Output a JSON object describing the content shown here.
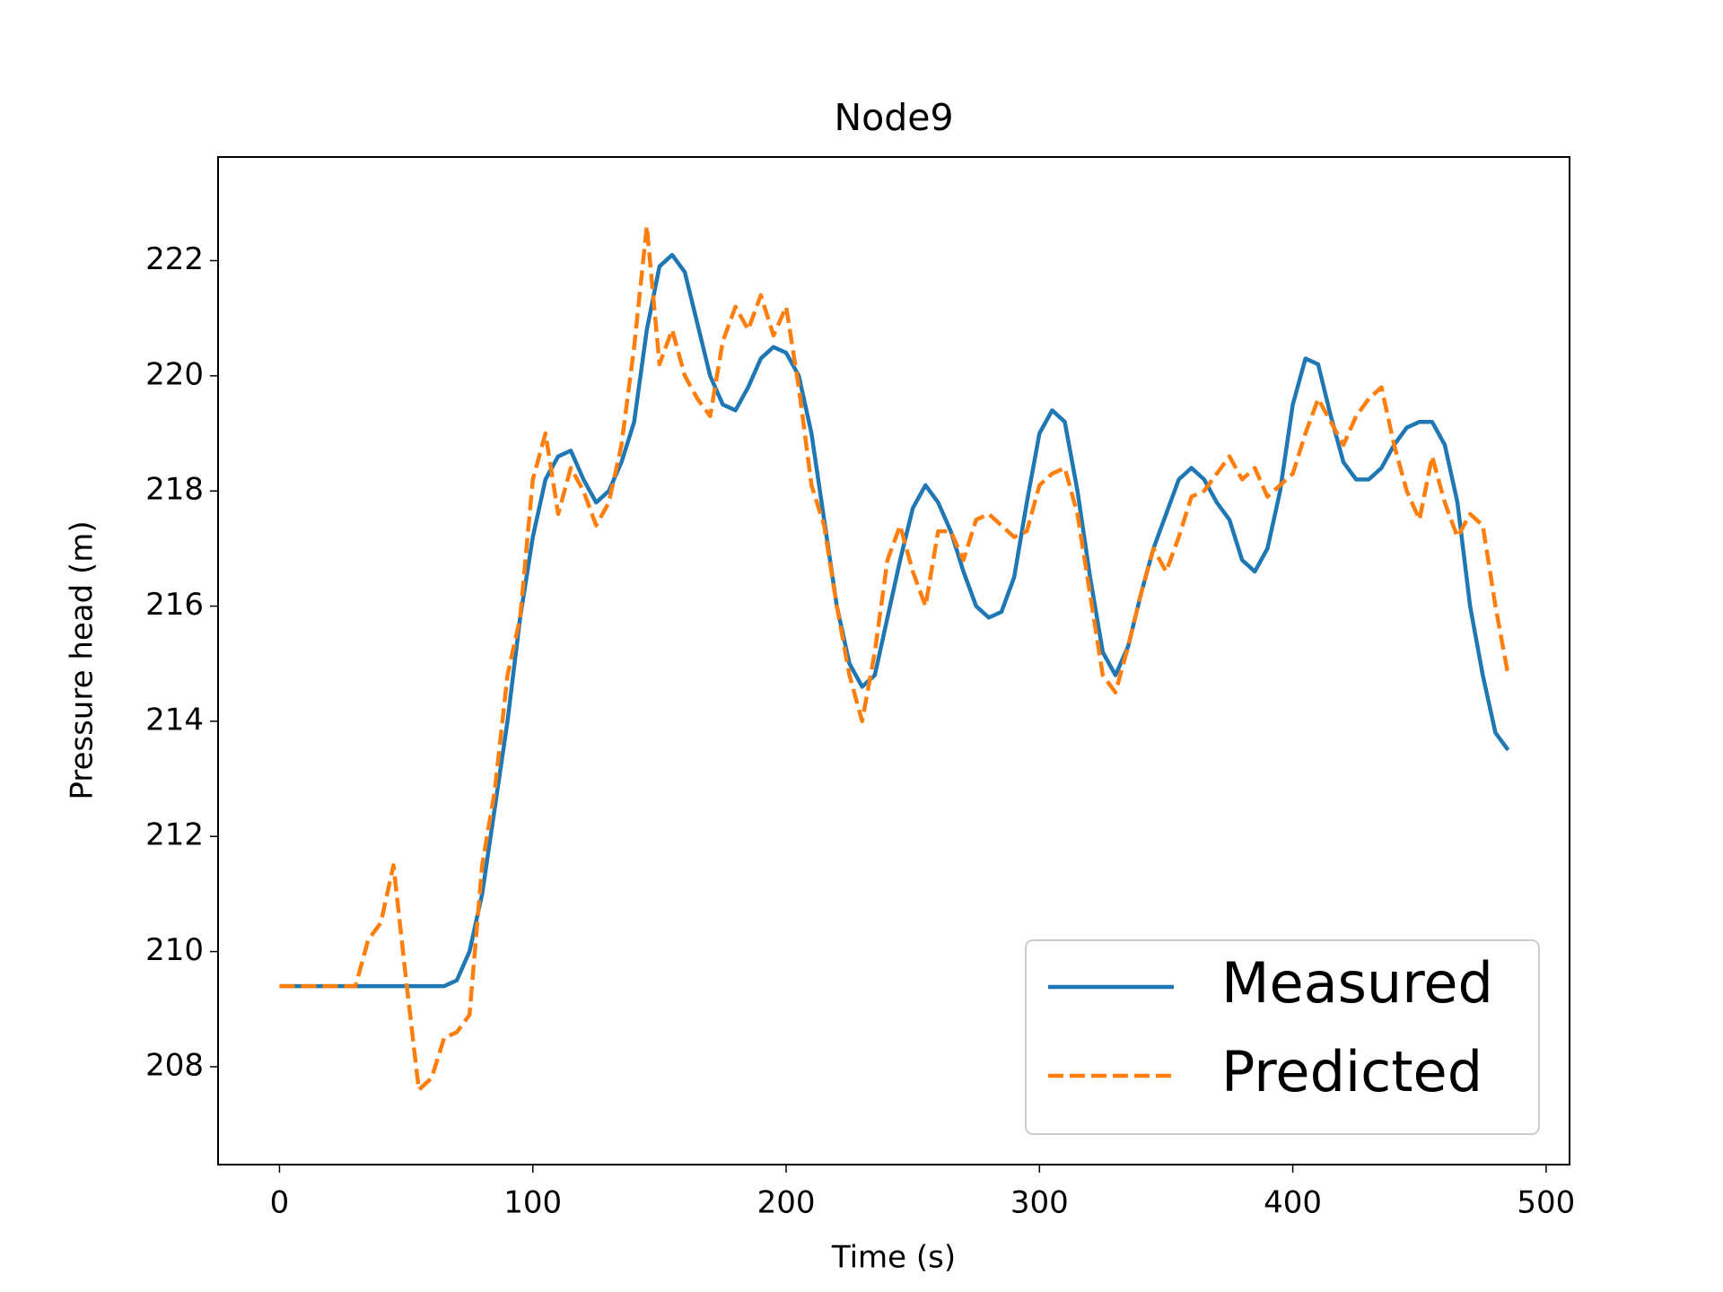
{
  "chart_data": {
    "type": "line",
    "title": "Node9",
    "x_label": "Time (s)",
    "y_label": "Pressure head (m)",
    "x": [
      0,
      5,
      10,
      15,
      20,
      25,
      30,
      35,
      40,
      45,
      50,
      55,
      60,
      65,
      70,
      75,
      80,
      85,
      90,
      95,
      100,
      105,
      110,
      115,
      120,
      125,
      130,
      135,
      140,
      145,
      150,
      155,
      160,
      165,
      170,
      175,
      180,
      185,
      190,
      195,
      200,
      205,
      210,
      215,
      220,
      225,
      230,
      235,
      240,
      245,
      250,
      255,
      260,
      265,
      270,
      275,
      280,
      285,
      290,
      295,
      300,
      305,
      310,
      315,
      320,
      325,
      330,
      335,
      340,
      345,
      350,
      355,
      360,
      365,
      370,
      375,
      380,
      385,
      390,
      395,
      400,
      405,
      410,
      415,
      420,
      425,
      430,
      435,
      440,
      445,
      450,
      455,
      460,
      465,
      470,
      475,
      480,
      485
    ],
    "series": [
      {
        "name": "Measured",
        "color": "#1f77b4",
        "dashed": false,
        "values": [
          209.4,
          209.4,
          209.4,
          209.4,
          209.4,
          209.4,
          209.4,
          209.4,
          209.4,
          209.4,
          209.4,
          209.4,
          209.4,
          209.4,
          209.5,
          210.0,
          211.0,
          212.5,
          214.0,
          215.8,
          217.2,
          218.2,
          218.6,
          218.7,
          218.2,
          217.8,
          218.0,
          218.5,
          219.2,
          220.8,
          221.9,
          222.1,
          221.8,
          220.9,
          220.0,
          219.5,
          219.4,
          219.8,
          220.3,
          220.5,
          220.4,
          220.0,
          219.0,
          217.5,
          216.0,
          215.0,
          214.6,
          214.8,
          215.8,
          216.8,
          217.7,
          218.1,
          217.8,
          217.3,
          216.6,
          216.0,
          215.8,
          215.9,
          216.5,
          217.8,
          219.0,
          219.4,
          219.2,
          218.0,
          216.5,
          215.2,
          214.8,
          215.3,
          216.2,
          217.0,
          217.6,
          218.2,
          218.4,
          218.2,
          217.8,
          217.5,
          216.8,
          216.6,
          217.0,
          218.0,
          219.5,
          220.3,
          220.2,
          219.3,
          218.5,
          218.2,
          218.2,
          218.4,
          218.8,
          219.1,
          219.2,
          219.2,
          218.8,
          217.8,
          216.0,
          214.8,
          213.8,
          213.5
        ]
      },
      {
        "name": "Predicted",
        "color": "#ff7f0e",
        "dashed": true,
        "values": [
          209.4,
          209.4,
          209.4,
          209.4,
          209.4,
          209.4,
          209.4,
          210.2,
          210.5,
          211.5,
          209.5,
          207.6,
          207.8,
          208.5,
          208.6,
          208.9,
          211.5,
          212.8,
          214.8,
          215.8,
          218.2,
          219.0,
          217.6,
          218.4,
          218.0,
          217.4,
          217.8,
          218.8,
          220.5,
          222.6,
          220.2,
          220.8,
          220.0,
          219.6,
          219.3,
          220.6,
          221.2,
          220.8,
          221.4,
          220.7,
          221.2,
          219.8,
          218.1,
          217.4,
          216.0,
          214.8,
          214.0,
          215.2,
          216.8,
          217.4,
          216.6,
          216.0,
          217.3,
          217.3,
          216.8,
          217.5,
          217.6,
          217.4,
          217.2,
          217.3,
          218.1,
          218.3,
          218.4,
          217.6,
          216.2,
          214.8,
          214.5,
          215.3,
          216.2,
          217.0,
          216.6,
          217.2,
          217.9,
          218.0,
          218.3,
          218.6,
          218.2,
          218.4,
          217.9,
          218.1,
          218.3,
          219.0,
          219.6,
          219.2,
          218.8,
          219.3,
          219.6,
          219.8,
          218.8,
          218.0,
          217.5,
          218.6,
          217.8,
          217.2,
          217.6,
          217.4,
          216.0,
          214.8
        ]
      }
    ],
    "xlim": [
      -24.25,
      509.25
    ],
    "ylim": [
      206.3,
      223.8
    ],
    "xticks": [
      0,
      100,
      200,
      300,
      400,
      500
    ],
    "yticks": [
      208,
      210,
      212,
      214,
      216,
      218,
      220,
      222
    ],
    "legend": "lower right"
  }
}
